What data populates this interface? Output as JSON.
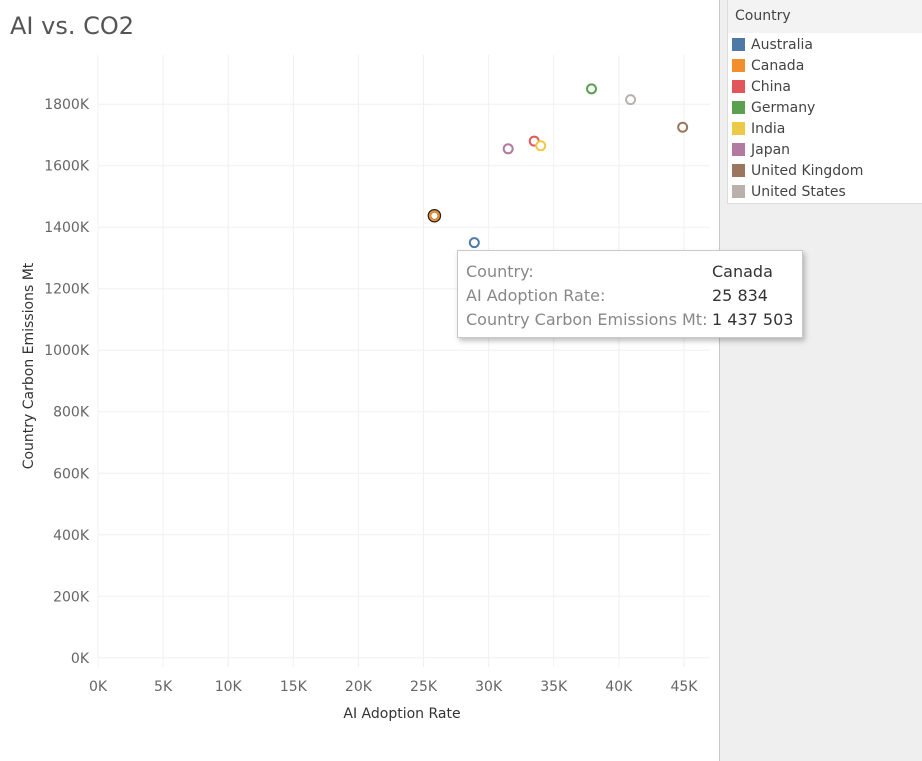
{
  "title": "AI vs. CO2",
  "legend": {
    "title": "Country",
    "items": [
      {
        "label": "Australia",
        "color": "#4e79a7"
      },
      {
        "label": "Canada",
        "color": "#f28e2b"
      },
      {
        "label": "China",
        "color": "#e15759"
      },
      {
        "label": "Germany",
        "color": "#59a14f"
      },
      {
        "label": "India",
        "color": "#edc948"
      },
      {
        "label": "Japan",
        "color": "#b07aa1"
      },
      {
        "label": "United Kingdom",
        "color": "#9c755f"
      },
      {
        "label": "United States",
        "color": "#bab0ac"
      }
    ]
  },
  "tooltip": {
    "country_key": "Country:",
    "country_value": "Canada",
    "x_key": "AI Adoption Rate:",
    "x_value": "25 834",
    "y_key": "Country Carbon Emissions Mt:",
    "y_value": "1 437 503"
  },
  "chart_data": {
    "type": "scatter",
    "title": "AI vs. CO2",
    "xlabel": "AI Adoption Rate",
    "ylabel": "Country Carbon Emissions Mt",
    "xlim": [
      0,
      47000
    ],
    "ylim": [
      -30000,
      1960000
    ],
    "x_ticks": [
      "0K",
      "5K",
      "10K",
      "15K",
      "20K",
      "25K",
      "30K",
      "35K",
      "40K",
      "45K"
    ],
    "x_tick_values": [
      0,
      5000,
      10000,
      15000,
      20000,
      25000,
      30000,
      35000,
      40000,
      45000
    ],
    "y_ticks": [
      "0K",
      "200K",
      "400K",
      "600K",
      "800K",
      "1000K",
      "1200K",
      "1400K",
      "1600K",
      "1800K"
    ],
    "y_tick_values": [
      0,
      200000,
      400000,
      600000,
      800000,
      1000000,
      1200000,
      1400000,
      1600000,
      1800000
    ],
    "grid": true,
    "legend_position": "right",
    "series": [
      {
        "name": "Australia",
        "color": "#4e79a7",
        "points": [
          {
            "x": 28900,
            "y": 1350000
          }
        ]
      },
      {
        "name": "Canada",
        "color": "#f28e2b",
        "points": [
          {
            "x": 25834,
            "y": 1437503
          }
        ],
        "highlighted": true
      },
      {
        "name": "China",
        "color": "#e15759",
        "points": [
          {
            "x": 33500,
            "y": 1680000
          }
        ]
      },
      {
        "name": "Germany",
        "color": "#59a14f",
        "points": [
          {
            "x": 37900,
            "y": 1850000
          }
        ]
      },
      {
        "name": "India",
        "color": "#edc948",
        "points": [
          {
            "x": 34000,
            "y": 1665000
          }
        ]
      },
      {
        "name": "Japan",
        "color": "#b07aa1",
        "points": [
          {
            "x": 31500,
            "y": 1655000
          }
        ]
      },
      {
        "name": "United Kingdom",
        "color": "#9c755f",
        "points": [
          {
            "x": 44900,
            "y": 1725000
          }
        ]
      },
      {
        "name": "United States",
        "color": "#bab0ac",
        "points": [
          {
            "x": 40900,
            "y": 1815000
          }
        ]
      }
    ]
  }
}
